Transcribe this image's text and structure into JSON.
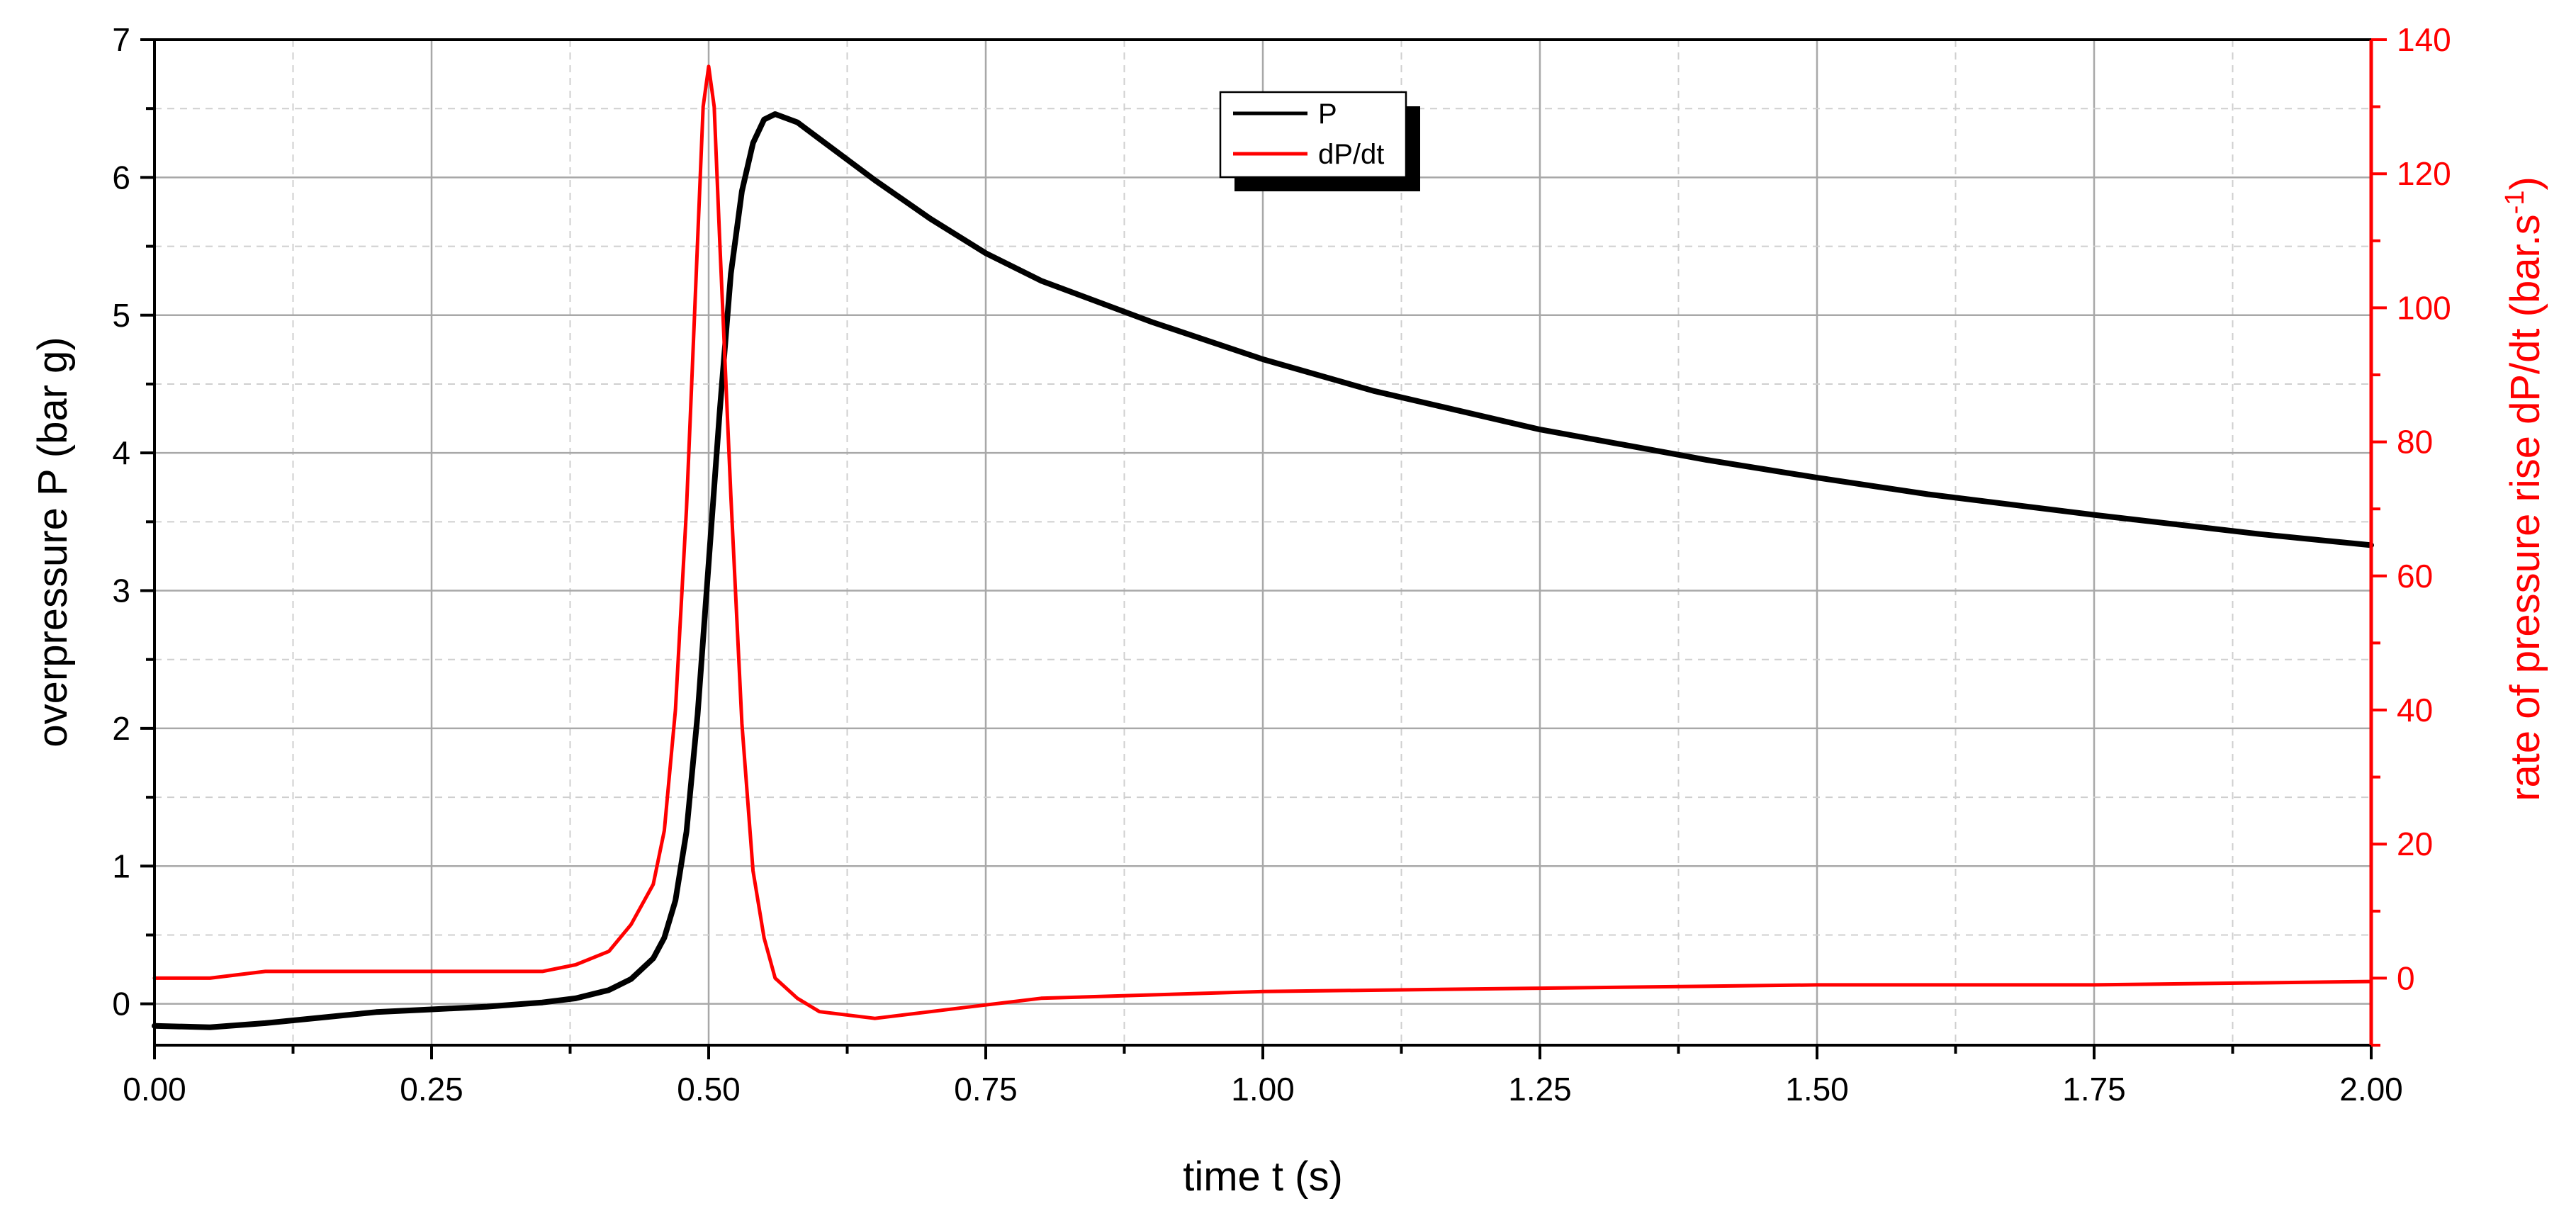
{
  "chart_data": {
    "type": "line",
    "title": "",
    "xlabel": "time t (s)",
    "ylabel": "overpressure P (bar g)",
    "y2label_main": "rate of pressure rise dP/dt (bar.s",
    "y2label_sup": "-1",
    "y2label_end": ")",
    "xlim": [
      0,
      2
    ],
    "ylim": [
      -0.3,
      7
    ],
    "y2lim": [
      -10,
      140
    ],
    "x_ticks": [
      "0.00",
      "0.25",
      "0.50",
      "0.75",
      "1.00",
      "1.25",
      "1.50",
      "1.75",
      "2.00"
    ],
    "y_ticks": [
      "0",
      "1",
      "2",
      "3",
      "4",
      "5",
      "6",
      "7"
    ],
    "y2_ticks": [
      "0",
      "20",
      "40",
      "60",
      "80",
      "100",
      "120",
      "140"
    ],
    "grid": true,
    "legend_placement": "top-center",
    "colors": {
      "P": "#000000",
      "dPdt": "#ff0000"
    },
    "series": [
      {
        "name": "P",
        "axis": "left",
        "x": [
          0.0,
          0.05,
          0.1,
          0.15,
          0.2,
          0.25,
          0.3,
          0.35,
          0.38,
          0.41,
          0.43,
          0.45,
          0.46,
          0.47,
          0.48,
          0.49,
          0.5,
          0.51,
          0.52,
          0.53,
          0.54,
          0.55,
          0.56,
          0.58,
          0.6,
          0.65,
          0.7,
          0.75,
          0.8,
          0.9,
          1.0,
          1.1,
          1.25,
          1.4,
          1.5,
          1.6,
          1.75,
          1.9,
          2.0
        ],
        "y": [
          -0.16,
          -0.17,
          -0.14,
          -0.1,
          -0.06,
          -0.04,
          -0.02,
          0.01,
          0.04,
          0.1,
          0.18,
          0.33,
          0.48,
          0.75,
          1.25,
          2.1,
          3.2,
          4.3,
          5.3,
          5.9,
          6.25,
          6.42,
          6.46,
          6.4,
          6.28,
          5.98,
          5.7,
          5.45,
          5.25,
          4.95,
          4.68,
          4.45,
          4.17,
          3.95,
          3.82,
          3.7,
          3.55,
          3.41,
          3.33
        ]
      },
      {
        "name": "dP/dt",
        "axis": "right",
        "x": [
          0.0,
          0.05,
          0.1,
          0.15,
          0.2,
          0.25,
          0.3,
          0.35,
          0.38,
          0.41,
          0.43,
          0.45,
          0.46,
          0.47,
          0.48,
          0.49,
          0.495,
          0.5,
          0.505,
          0.51,
          0.52,
          0.53,
          0.54,
          0.55,
          0.56,
          0.58,
          0.6,
          0.65,
          0.7,
          0.75,
          0.8,
          0.9,
          1.0,
          1.25,
          1.5,
          1.75,
          2.0
        ],
        "y": [
          0,
          0,
          1,
          1,
          1,
          1,
          1,
          1,
          2,
          4,
          8,
          14,
          22,
          40,
          70,
          110,
          130,
          136,
          130,
          110,
          72,
          38,
          16,
          6,
          0,
          -3,
          -5,
          -6,
          -5,
          -4,
          -3,
          -2.5,
          -2,
          -1.5,
          -1,
          -1,
          -0.5
        ]
      }
    ]
  }
}
